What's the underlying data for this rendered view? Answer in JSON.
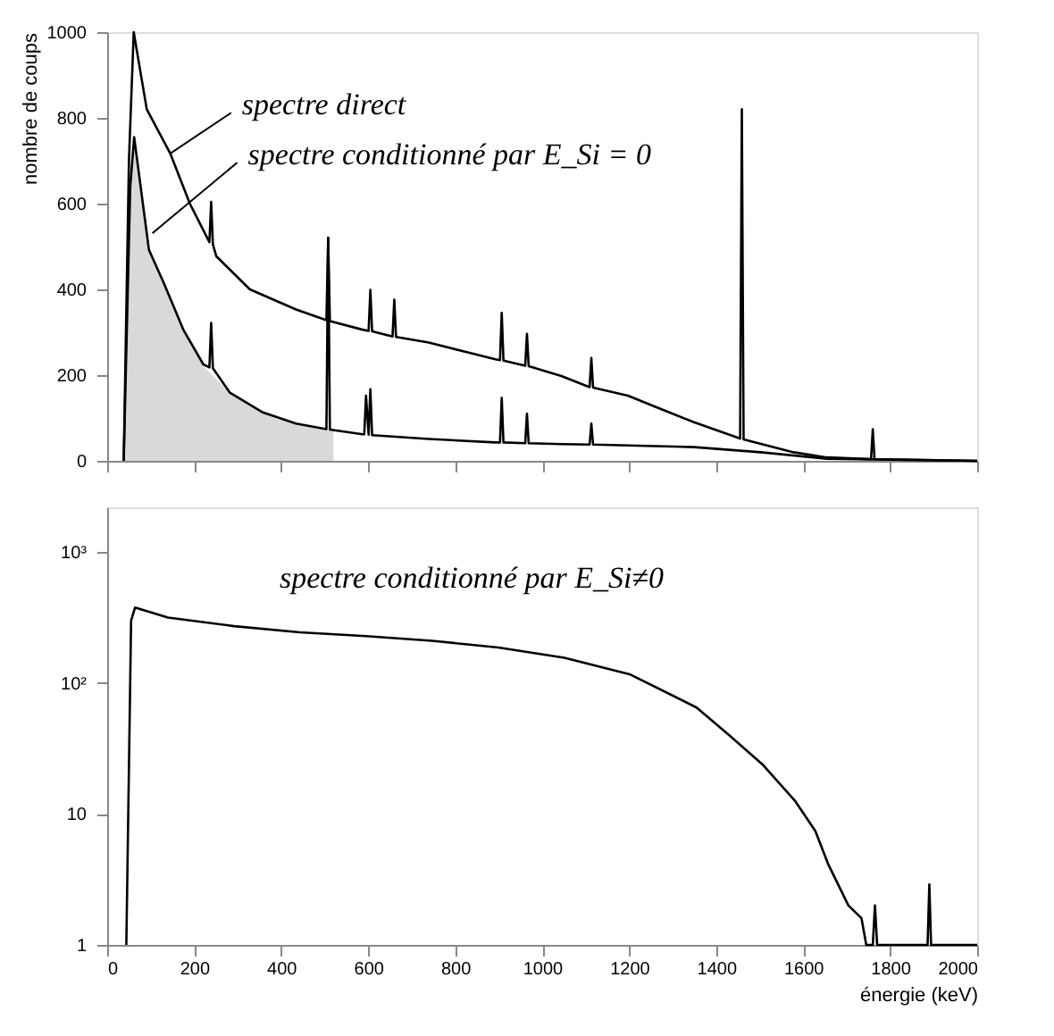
{
  "chart_data": [
    {
      "type": "line",
      "ylabel": "nombre de coups",
      "xlim": [
        0,
        2000
      ],
      "xticks": [
        0,
        200,
        400,
        600,
        800,
        1000,
        1200,
        1400,
        1600,
        1800,
        2000
      ],
      "ylim": [
        0,
        1000
      ],
      "yticks": [
        0,
        200,
        400,
        600,
        800,
        1000
      ],
      "tick_labels": "y",
      "grid": false,
      "annotations": [
        {
          "text": "spectre direct",
          "x": 145,
          "y": 717
        },
        {
          "text": "spectre conditionné par E_Si = 0",
          "x": 104,
          "y": 531
        }
      ],
      "series": [
        {
          "type": "area",
          "color": "#cfcfcf",
          "x": [
            38,
            53,
            62,
            96,
            130,
            175,
            221,
            282,
            358,
            434,
            520
          ],
          "values": [
            0,
            640,
            755,
            492,
            415,
            306,
            221,
            159,
            113,
            87,
            70
          ]
        },
        {
          "color": "#000000",
          "x": [
            38,
            50,
            61,
            91,
            145,
            190,
            235,
            239,
            243,
            251,
            328,
            434,
            504,
            508,
            512,
            587,
            601,
            605,
            609,
            656,
            660,
            664,
            739,
            892,
            903,
            907,
            911,
            961,
            965,
            969,
            1044,
            1109,
            1113,
            1117,
            1197,
            1273,
            1349,
            1455,
            1459,
            1463,
            1578,
            1654,
            1756,
            1760,
            1764,
            1806,
            2000
          ],
          "values": [
            0,
            700,
            1000,
            820,
            717,
            600,
            510,
            604,
            505,
            477,
            400,
            353,
            328,
            520,
            326,
            306,
            303,
            399,
            302,
            290,
            376,
            289,
            276,
            237,
            235,
            345,
            234,
            222,
            296,
            221,
            198,
            172,
            240,
            171,
            152,
            121,
            90,
            52,
            820,
            50,
            20,
            8,
            4,
            74,
            4,
            3,
            0
          ]
        },
        {
          "color": "#000000",
          "x": [
            38,
            53,
            62,
            96,
            130,
            175,
            221,
            235,
            239,
            243,
            282,
            358,
            434,
            504,
            508,
            512,
            587,
            591,
            595,
            601,
            605,
            609,
            739,
            892,
            903,
            907,
            911,
            961,
            965,
            969,
            1044,
            1109,
            1113,
            1117,
            1197,
            1349,
            1502,
            1654,
            2000
          ],
          "values": [
            0,
            640,
            755,
            492,
            415,
            306,
            225,
            218,
            322,
            216,
            159,
            113,
            87,
            74,
            520,
            73,
            62,
            62,
            152,
            61,
            167,
            60,
            51,
            43,
            43,
            147,
            43,
            41,
            110,
            41,
            39,
            38,
            87,
            38,
            36,
            32,
            20,
            5,
            0
          ]
        }
      ]
    },
    {
      "type": "line",
      "xlabel": "énergie (keV)",
      "xlim": [
        0,
        2000
      ],
      "xticks": [
        0,
        200,
        400,
        600,
        800,
        1000,
        1200,
        1400,
        1600,
        1800,
        2000
      ],
      "ylim": [
        1,
        2200
      ],
      "yticks": [
        1,
        10,
        {
          "value": 100,
          "label": "10²"
        },
        {
          "value": 1000,
          "label": "10³"
        }
      ],
      "log": true,
      "grid": false,
      "annotations": [
        "spectre conditionné par E_Si≠0"
      ],
      "series": [
        {
          "color": "#000000",
          "x": [
            44,
            55,
            64,
            140,
            292,
            443,
            595,
            747,
            899,
            1051,
            1203,
            1355,
            1430,
            1506,
            1582,
            1628,
            1658,
            1704,
            1734,
            1745,
            1760,
            1765,
            1770,
            1886,
            1890,
            1894,
            1960,
            2000
          ],
          "values": [
            1,
            300,
            377,
            316,
            272,
            244,
            228,
            210,
            187,
            156,
            116,
            65,
            40,
            24,
            12.5,
            7.4,
            4.1,
            2.0,
            1.6,
            1,
            1,
            2,
            1,
            1,
            2.9,
            1,
            1,
            1
          ]
        }
      ]
    }
  ]
}
